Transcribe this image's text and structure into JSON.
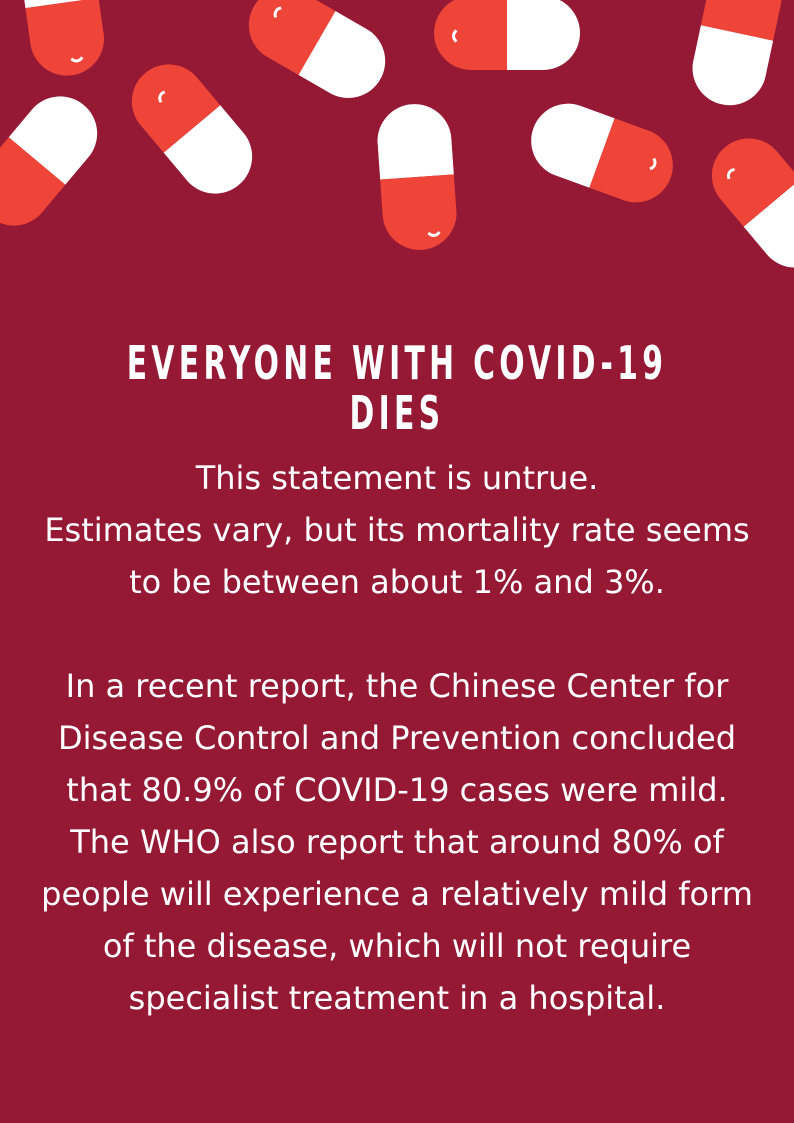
{
  "colors": {
    "background": "#951935",
    "pill_red": "#ef4438",
    "pill_white": "#ffffff",
    "text": "#ffffff"
  },
  "decoration": "pill-capsules",
  "title": "EVERYONE WITH COVID-19 DIES",
  "paragraphs": [
    "This statement is untrue.",
    "Estimates vary, but its mortality rate seems to be between about 1% and 3%.",
    "In a recent report, the Chinese Center for Disease Control and Prevention concluded that 80.9% of COVID-19 cases were mild.",
    "The WHO also report that around 80% of people will experience a relatively mild form of the disease, which will not require specialist treatment in a hospital."
  ]
}
